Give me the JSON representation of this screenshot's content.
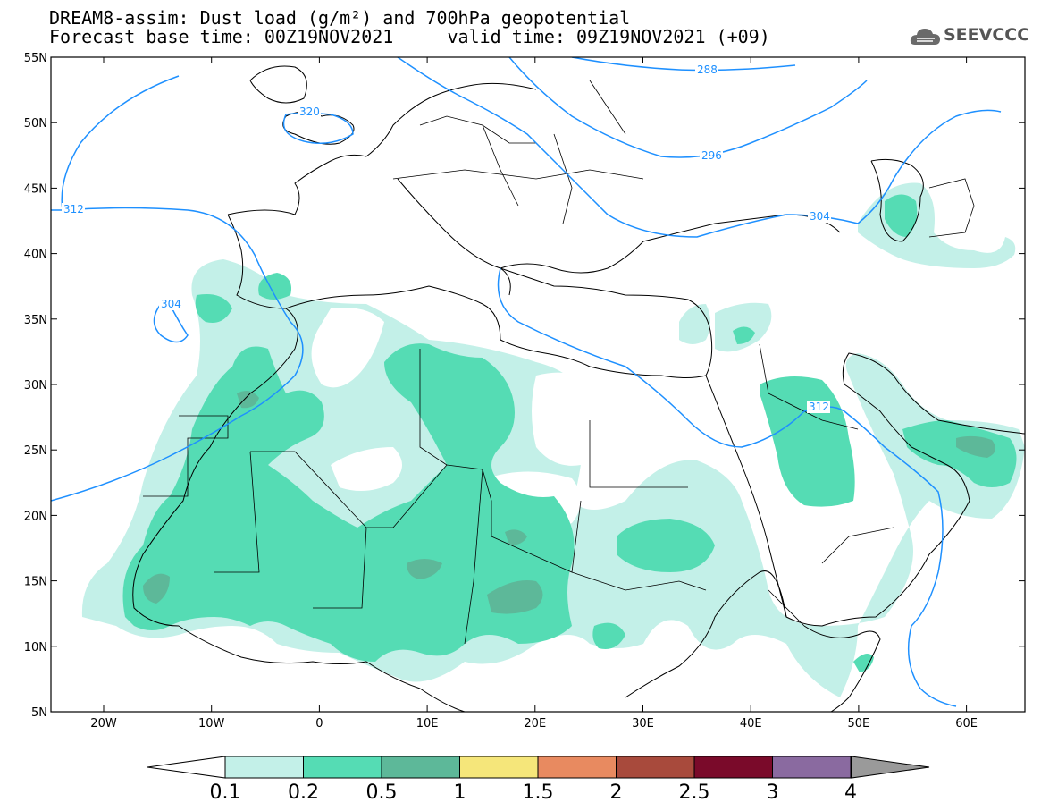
{
  "header": {
    "title_line1": "DREAM8-assim: Dust load (g/m²) and 700hPa geopotential",
    "title_line2": "Forecast base time: 00Z19NOV2021     valid time: 09Z19NOV2021 (+09)"
  },
  "logo": {
    "text": "SEEVCCC",
    "icon": "cloud-icon"
  },
  "map": {
    "lon_labels": [
      "20W",
      "10W",
      "0",
      "10E",
      "20E",
      "30E",
      "40E",
      "50E",
      "60E"
    ],
    "lat_labels": [
      "55N",
      "50N",
      "45N",
      "40N",
      "35N",
      "30N",
      "25N",
      "20N",
      "15N",
      "10N",
      "5N"
    ],
    "contour_labels": [
      "288",
      "296",
      "304",
      "312",
      "320",
      "304",
      "312"
    ],
    "contour_color": "#1e90ff",
    "dust_colors": [
      "#c3f0e8",
      "#55dcb4",
      "#5db899"
    ]
  },
  "colorbar": {
    "labels": [
      "0.1",
      "0.2",
      "0.5",
      "1",
      "1.5",
      "2",
      "2.5",
      "3",
      "4"
    ],
    "colors": [
      "#c3f0e8",
      "#55dcb4",
      "#5db899",
      "#f5e67a",
      "#e88a60",
      "#a84a3c",
      "#7a0a2a",
      "#8a6aa0",
      "#9a9a9a"
    ]
  }
}
